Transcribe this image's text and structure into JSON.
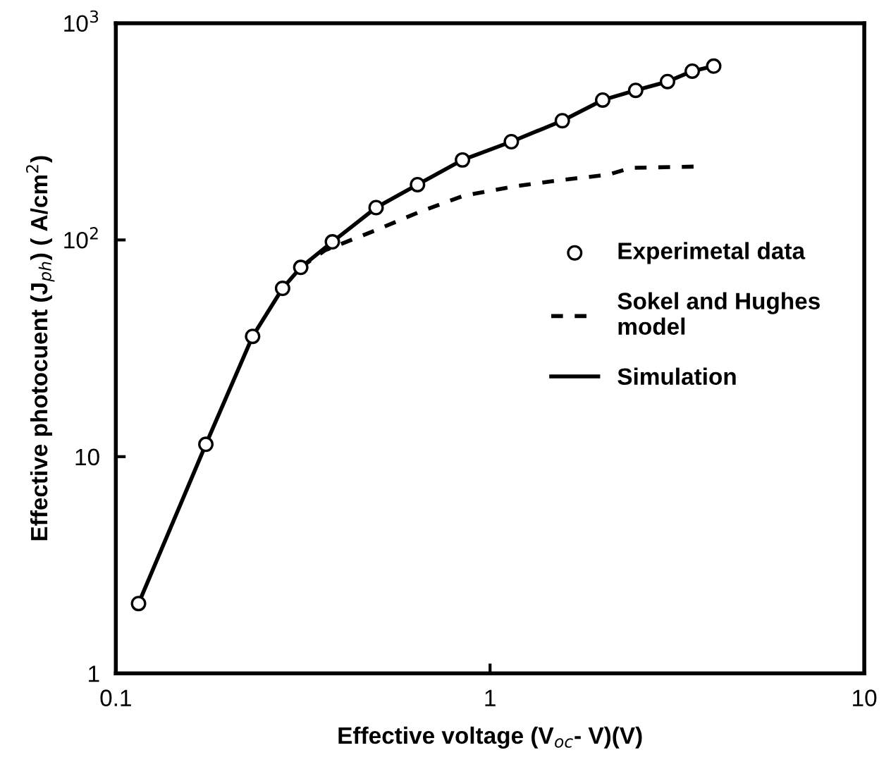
{
  "chart_data": {
    "type": "line",
    "xlabel": "Effective voltage (V$_{oc}$- V)(V)",
    "ylabel": "Effective photocuent (J$_{ph}$) ( A/cm$^{2}$)",
    "log": "xy",
    "xlim": [
      0.1,
      10
    ],
    "ylim": [
      1,
      1000
    ],
    "xticks": [
      0.1,
      1,
      10
    ],
    "yticks": [
      1,
      10,
      {
        "value": 100,
        "label": "10$^{2}$"
      },
      {
        "value": 1000,
        "label": "10$^{3}$"
      }
    ],
    "grid": false,
    "legend": "right",
    "series": [
      {
        "name": "Experimetal data",
        "type": "scatter",
        "marker": "circle",
        "color": "#000000",
        "x": [
          0.115,
          0.174,
          0.232,
          0.279,
          0.312,
          0.379,
          0.496,
          0.64,
          0.844,
          1.14,
          1.56,
          2.0,
          2.45,
          2.98,
          3.47,
          3.96
        ],
        "values": [
          2.1,
          11.4,
          35.9,
          59.8,
          74.7,
          98,
          141,
          180,
          234,
          284,
          355,
          442,
          490,
          538,
          601,
          634
        ]
      },
      {
        "name": "Sokel and Hughes\nmodel",
        "type": "line",
        "line_style": "dashed",
        "marker": "none",
        "color": "#000000",
        "x": [
          0.312,
          0.362,
          0.496,
          0.65,
          0.85,
          1.17,
          1.59,
          2.07,
          2.38,
          3.53
        ],
        "values": [
          74.7,
          89.5,
          111,
          135,
          160,
          177,
          190,
          200,
          215,
          218
        ]
      },
      {
        "name": "Simulation",
        "line_style": "solid",
        "marker": "none",
        "color": "#000000",
        "x": [
          0.115,
          0.174,
          0.232,
          0.279,
          0.312,
          0.379,
          0.496,
          0.64,
          0.844,
          1.14,
          1.56,
          2.0,
          2.45,
          2.98,
          3.47,
          3.96
        ],
        "values": [
          2.1,
          11.4,
          35.9,
          59.8,
          74.7,
          98,
          141,
          180,
          234,
          284,
          355,
          442,
          490,
          538,
          601,
          634
        ]
      }
    ]
  }
}
